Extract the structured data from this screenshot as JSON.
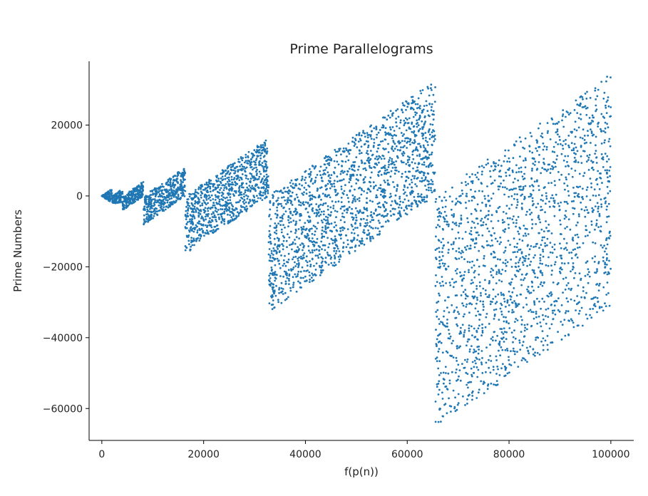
{
  "chart_data": {
    "type": "scatter",
    "title": "Prime Parallelograms",
    "xlabel": "f(p(n))",
    "ylabel": "Prime Numbers",
    "xlim": [
      -2500,
      104500
    ],
    "ylim": [
      -69000,
      38000
    ],
    "xticks": [
      0,
      20000,
      40000,
      60000,
      80000,
      100000
    ],
    "xtick_labels": [
      "0",
      "20000",
      "40000",
      "60000",
      "80000",
      "100000"
    ],
    "yticks": [
      -60000,
      -40000,
      -20000,
      0,
      20000
    ],
    "ytick_labels": [
      "−60000",
      "−40000",
      "−20000",
      "0",
      "20000"
    ],
    "grid": false,
    "marker_color": "#1f77b4",
    "series": [
      {
        "description_of_structure": "points (x, y) for prime n in [0, 100000] with x = f(p(n)); the cloud forms parallelogram bands between consecutive powers of two, each band bounded below by y = x - 2*2^k and above by y = x",
        "bands": [
          {
            "x_range": [
              0,
              2048
            ],
            "y_at_start": [
              -40,
              40
            ],
            "y_at_end": [
              -2048,
              2048
            ]
          },
          {
            "x_range": [
              2048,
              4096
            ],
            "y_at_start": [
              -2048,
              0
            ],
            "y_at_end": [
              -2048,
              2048
            ]
          },
          {
            "x_range": [
              4096,
              8192
            ],
            "y_at_start": [
              -4096,
              0
            ],
            "y_at_end": [
              0,
              4096
            ]
          },
          {
            "x_range": [
              8192,
              16384
            ],
            "y_at_start": [
              -8192,
              0
            ],
            "y_at_end": [
              0,
              8192
            ]
          },
          {
            "x_range": [
              16384,
              32768
            ],
            "y_at_start": [
              -16384,
              0
            ],
            "y_at_end": [
              0,
              16384
            ]
          },
          {
            "x_range": [
              32768,
              65536
            ],
            "y_at_start": [
              -32768,
              0
            ],
            "y_at_end": [
              0,
              32768
            ]
          },
          {
            "x_range": [
              65536,
              100000
            ],
            "y_at_start": [
              -65536,
              0
            ],
            "y_at_end": [
              -31072,
              34464
            ]
          }
        ]
      }
    ]
  }
}
